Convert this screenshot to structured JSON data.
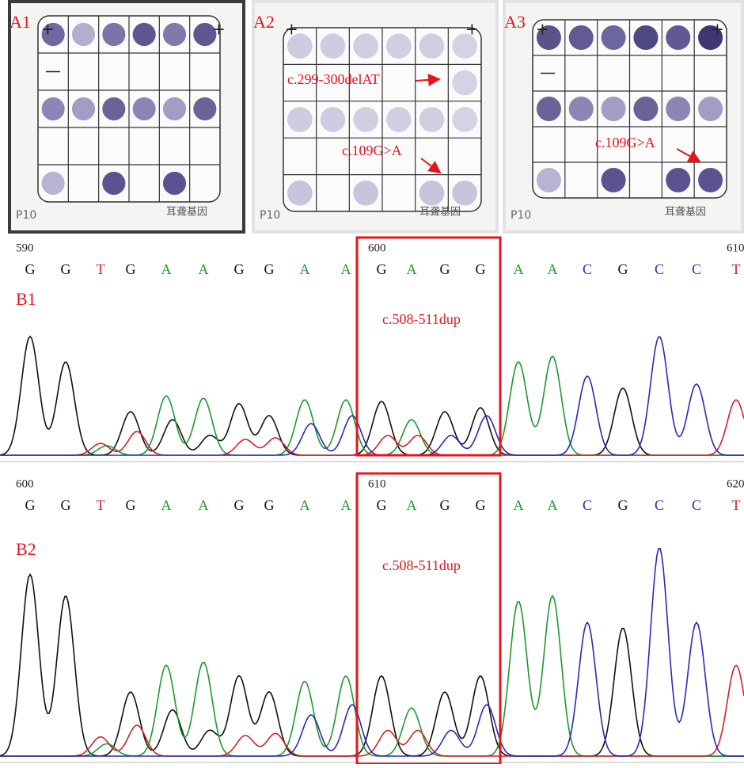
{
  "panels_a": [
    {
      "label": "A1",
      "footer_left": "P10",
      "footer_right": "耳聋基因",
      "annotations": []
    },
    {
      "label": "A2",
      "footer_left": "P10",
      "footer_right": "耳聋基因",
      "annotations": [
        "c.299-300delAT",
        "c.109G>A"
      ]
    },
    {
      "label": "A3",
      "footer_left": "P10",
      "footer_right": "耳聋基因",
      "annotations": [
        "c.109G>A"
      ]
    }
  ],
  "panels_b": [
    {
      "label": "B1",
      "positions": [
        590,
        600,
        610
      ],
      "bases": [
        "G",
        "G",
        "T",
        "G",
        "A",
        "A",
        "G",
        "G",
        "A",
        "A",
        "G",
        "A",
        "G",
        "G",
        "A",
        "A",
        "C",
        "G",
        "C",
        "C",
        "T"
      ],
      "annotation": "c.508-511dup"
    },
    {
      "label": "B2",
      "positions": [
        600,
        610,
        620
      ],
      "bases": [
        "G",
        "G",
        "T",
        "G",
        "A",
        "A",
        "G",
        "G",
        "A",
        "A",
        "G",
        "A",
        "G",
        "G",
        "A",
        "A",
        "C",
        "G",
        "C",
        "C",
        "T"
      ],
      "annotation": "c.508-511dup"
    }
  ]
}
